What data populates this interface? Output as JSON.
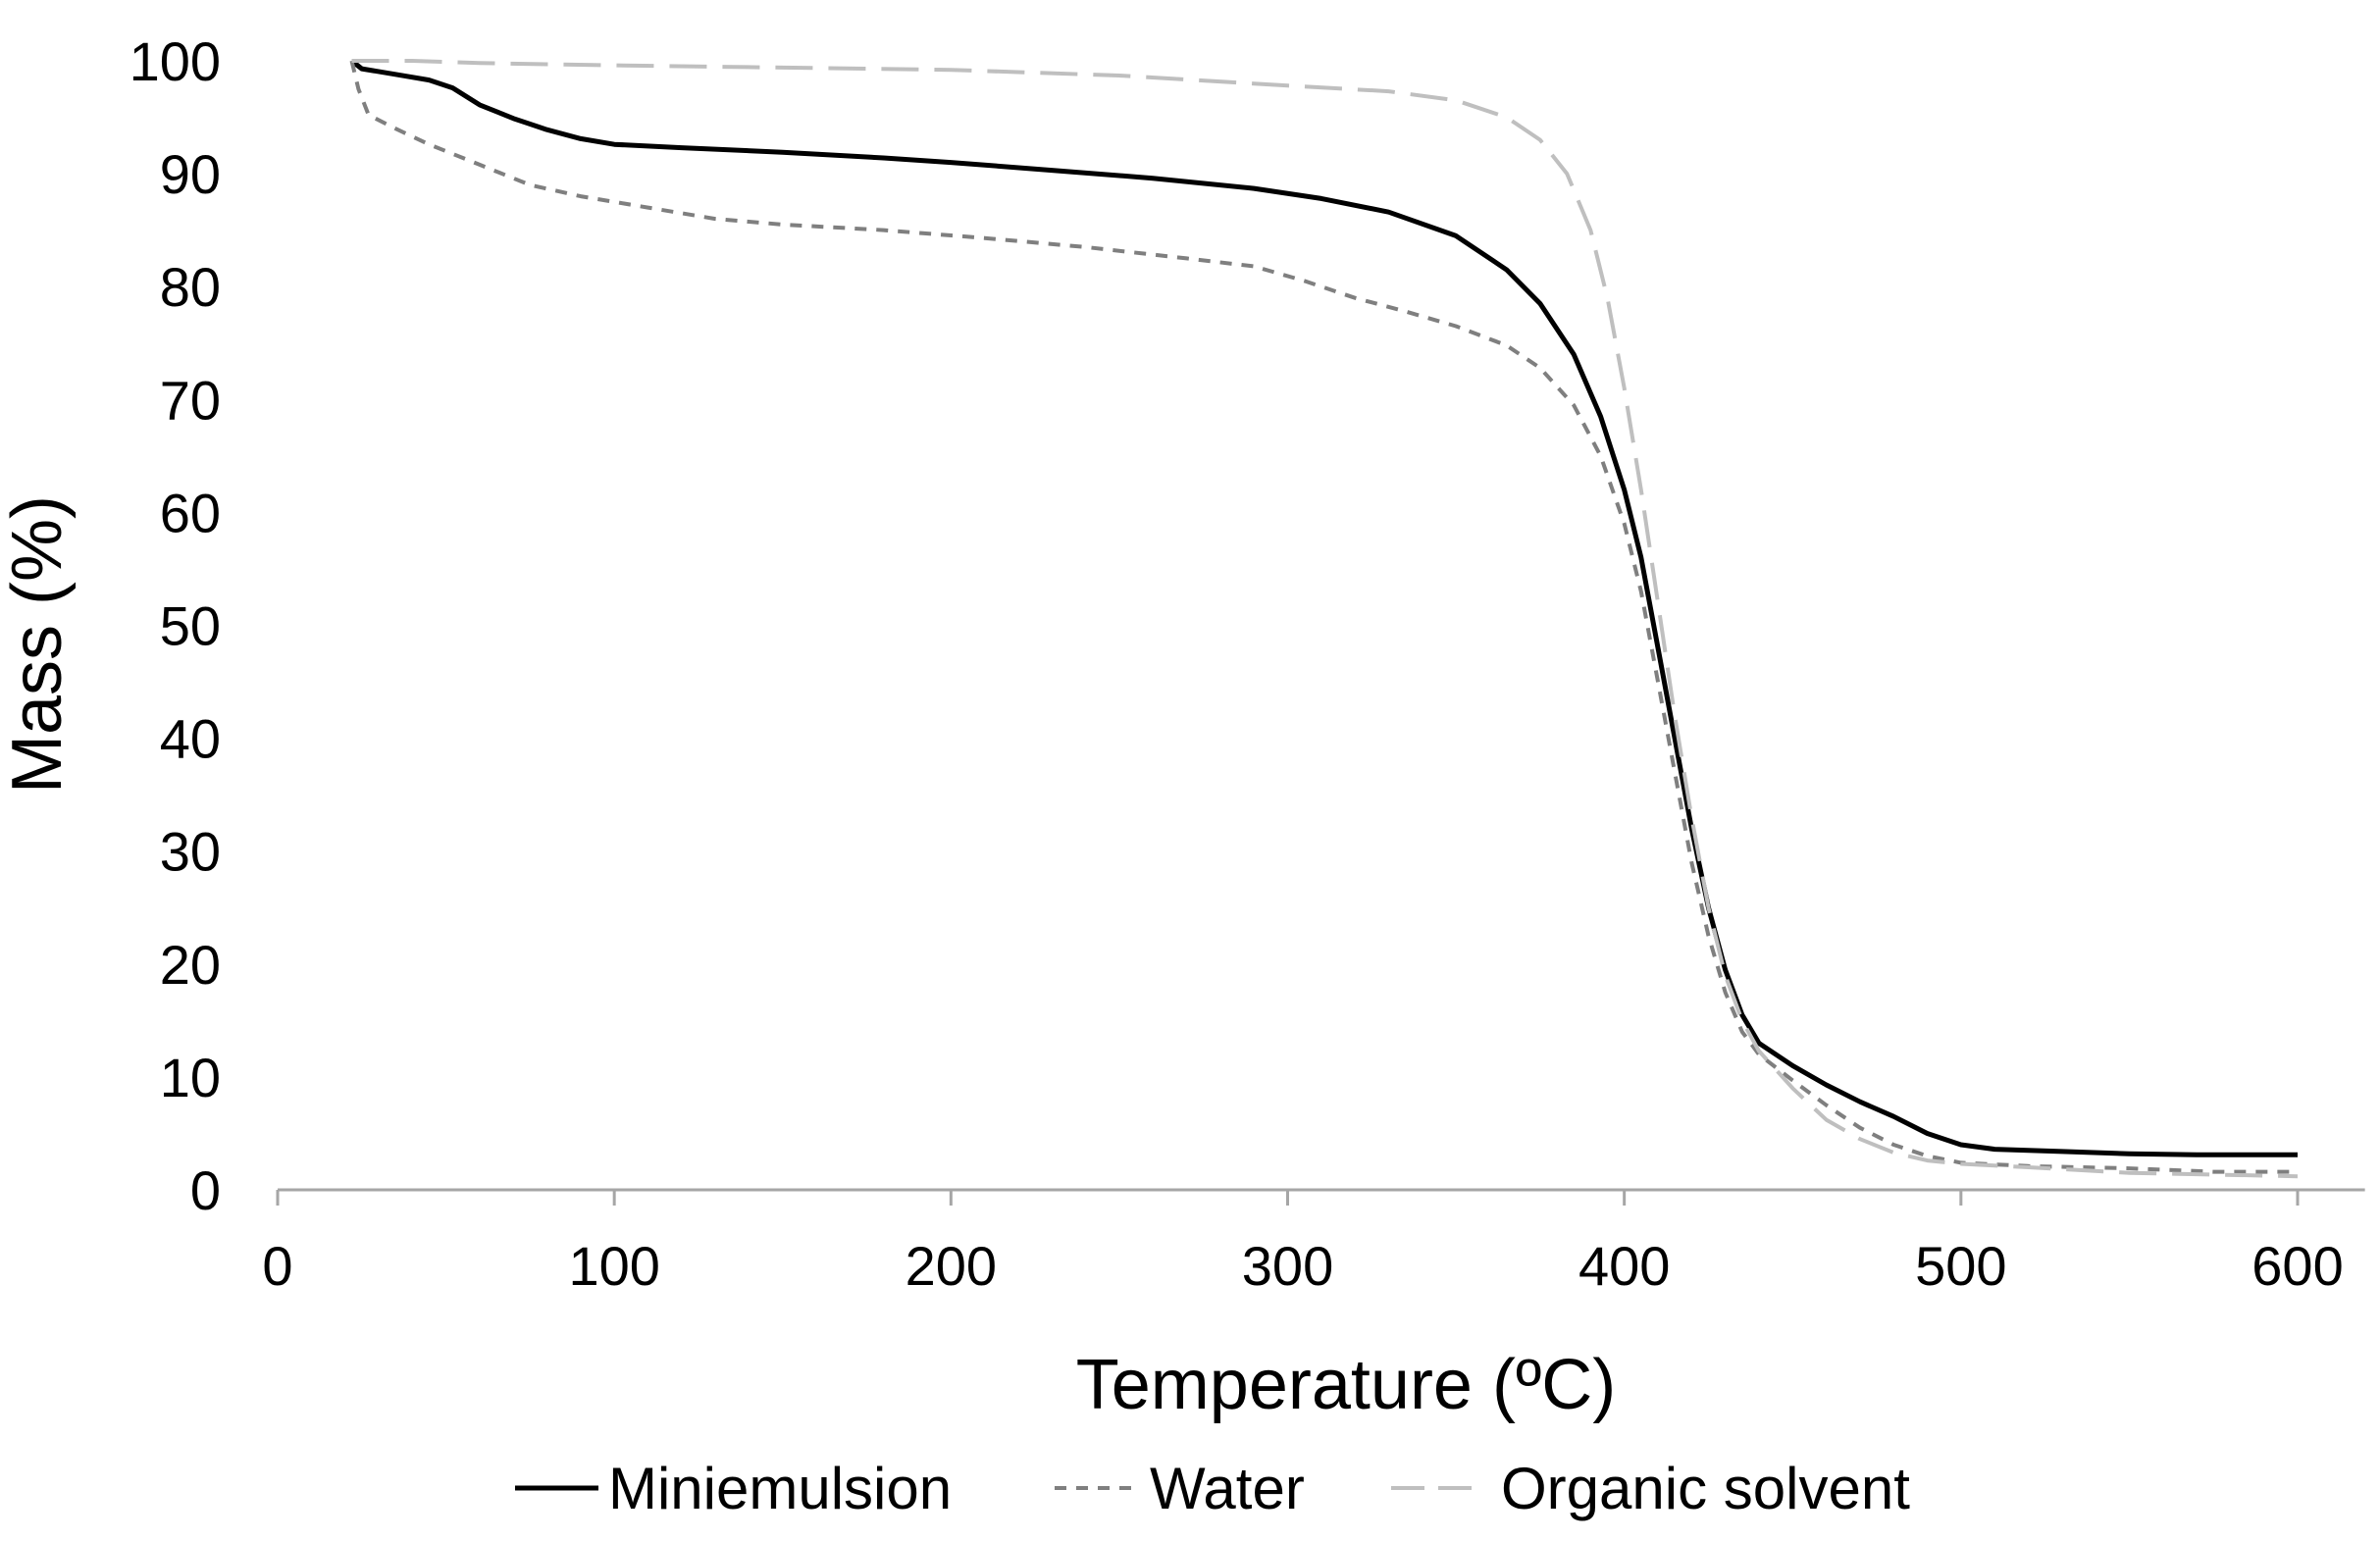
{
  "chart_data": {
    "type": "line",
    "title": "",
    "xlabel": "Temperature (ºC)",
    "ylabel": "Mass (%)",
    "xlim": [
      0,
      620
    ],
    "ylim": [
      0,
      100
    ],
    "xticks": [
      0,
      100,
      200,
      300,
      400,
      500,
      600
    ],
    "yticks": [
      0,
      10,
      20,
      30,
      40,
      50,
      60,
      70,
      80,
      90,
      100
    ],
    "xtick_labels": [
      "0",
      "100",
      "200",
      "300",
      "400",
      "500",
      "600"
    ],
    "ytick_labels": [
      "0",
      "10",
      "20",
      "30",
      "40",
      "50",
      "60",
      "70",
      "80",
      "90",
      "100"
    ],
    "grid": false,
    "legend_position": "bottom",
    "series": [
      {
        "name": "Miniemulsion",
        "color": "#000000",
        "dash": "solid",
        "points": [
          [
            22,
            100
          ],
          [
            25,
            99.3
          ],
          [
            35,
            98.8
          ],
          [
            45,
            98.3
          ],
          [
            52,
            97.6
          ],
          [
            60,
            96.1
          ],
          [
            70,
            94.9
          ],
          [
            80,
            93.9
          ],
          [
            90,
            93.1
          ],
          [
            100,
            92.6
          ],
          [
            120,
            92.3
          ],
          [
            150,
            91.9
          ],
          [
            180,
            91.4
          ],
          [
            200,
            91.0
          ],
          [
            230,
            90.3
          ],
          [
            260,
            89.6
          ],
          [
            290,
            88.7
          ],
          [
            310,
            87.8
          ],
          [
            330,
            86.6
          ],
          [
            350,
            84.5
          ],
          [
            365,
            81.5
          ],
          [
            375,
            78.5
          ],
          [
            385,
            74.0
          ],
          [
            393,
            68.5
          ],
          [
            400,
            62.0
          ],
          [
            405,
            56.0
          ],
          [
            410,
            48.0
          ],
          [
            415,
            40.0
          ],
          [
            420,
            32.0
          ],
          [
            425,
            25.0
          ],
          [
            430,
            19.5
          ],
          [
            435,
            15.5
          ],
          [
            440,
            13.0
          ],
          [
            450,
            11.0
          ],
          [
            460,
            9.3
          ],
          [
            470,
            7.8
          ],
          [
            480,
            6.5
          ],
          [
            490,
            5.0
          ],
          [
            500,
            4.0
          ],
          [
            510,
            3.6
          ],
          [
            530,
            3.4
          ],
          [
            550,
            3.2
          ],
          [
            570,
            3.1
          ],
          [
            600,
            3.1
          ]
        ]
      },
      {
        "name": "Water",
        "color": "#7f7f7f",
        "dash": "dashed",
        "points": [
          [
            22,
            100
          ],
          [
            24,
            97.5
          ],
          [
            27,
            95.2
          ],
          [
            35,
            94.0
          ],
          [
            45,
            92.6
          ],
          [
            60,
            90.8
          ],
          [
            75,
            89.0
          ],
          [
            90,
            88.0
          ],
          [
            110,
            87.0
          ],
          [
            130,
            86.0
          ],
          [
            150,
            85.5
          ],
          [
            180,
            85.0
          ],
          [
            210,
            84.3
          ],
          [
            240,
            83.5
          ],
          [
            270,
            82.5
          ],
          [
            290,
            81.8
          ],
          [
            305,
            80.5
          ],
          [
            320,
            79.0
          ],
          [
            335,
            77.8
          ],
          [
            350,
            76.5
          ],
          [
            365,
            74.8
          ],
          [
            375,
            72.8
          ],
          [
            385,
            69.5
          ],
          [
            393,
            65.0
          ],
          [
            400,
            59.0
          ],
          [
            405,
            53.0
          ],
          [
            410,
            45.0
          ],
          [
            415,
            37.0
          ],
          [
            420,
            29.0
          ],
          [
            425,
            22.5
          ],
          [
            430,
            17.5
          ],
          [
            435,
            14.0
          ],
          [
            440,
            12.0
          ],
          [
            450,
            9.7
          ],
          [
            460,
            7.5
          ],
          [
            470,
            5.5
          ],
          [
            480,
            4.0
          ],
          [
            490,
            3.0
          ],
          [
            500,
            2.4
          ],
          [
            520,
            2.1
          ],
          [
            550,
            1.9
          ],
          [
            575,
            1.6
          ],
          [
            600,
            1.6
          ]
        ]
      },
      {
        "name": "Organic solvent",
        "color": "#bfbfbf",
        "dash": "longdash",
        "points": [
          [
            22,
            100
          ],
          [
            40,
            100
          ],
          [
            60,
            99.8
          ],
          [
            100,
            99.6
          ],
          [
            150,
            99.4
          ],
          [
            200,
            99.2
          ],
          [
            250,
            98.7
          ],
          [
            300,
            97.8
          ],
          [
            330,
            97.3
          ],
          [
            350,
            96.5
          ],
          [
            365,
            95.0
          ],
          [
            375,
            93.0
          ],
          [
            383,
            90.0
          ],
          [
            390,
            85.0
          ],
          [
            395,
            79.0
          ],
          [
            400,
            71.0
          ],
          [
            405,
            62.0
          ],
          [
            410,
            52.0
          ],
          [
            415,
            42.0
          ],
          [
            420,
            33.0
          ],
          [
            425,
            25.0
          ],
          [
            430,
            19.0
          ],
          [
            435,
            15.0
          ],
          [
            440,
            12.3
          ],
          [
            450,
            9.0
          ],
          [
            460,
            6.2
          ],
          [
            470,
            4.5
          ],
          [
            480,
            3.3
          ],
          [
            490,
            2.6
          ],
          [
            500,
            2.3
          ],
          [
            520,
            2.0
          ],
          [
            550,
            1.5
          ],
          [
            600,
            1.2
          ]
        ]
      }
    ]
  }
}
